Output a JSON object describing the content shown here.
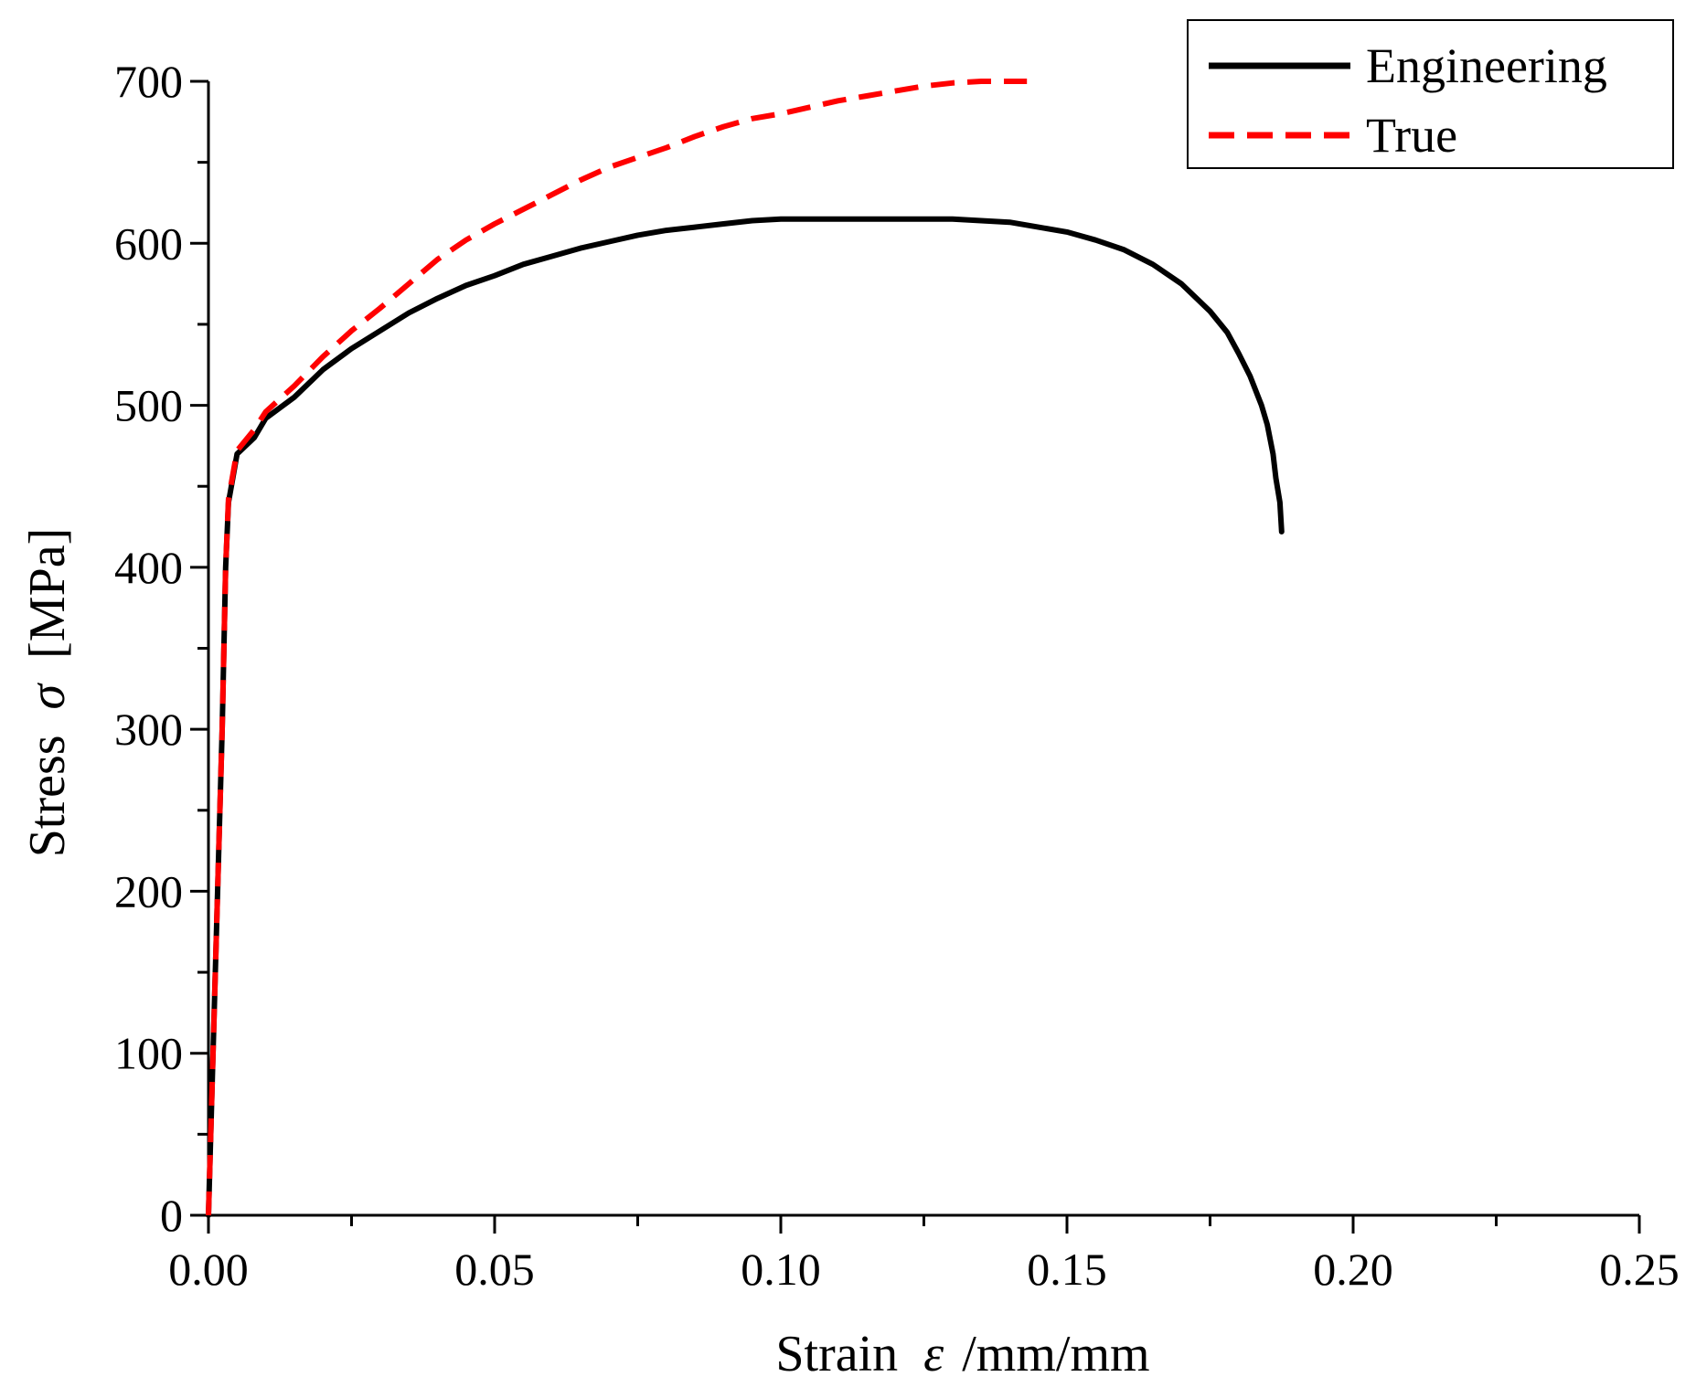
{
  "chart_data": {
    "type": "line",
    "title": "",
    "xlabel": {
      "prefix": "Strain",
      "symbol": "ε",
      "suffix": "/mm/mm"
    },
    "ylabel": {
      "prefix": "Stress",
      "symbol": "σ",
      "suffix": "[MPa]"
    },
    "xlim": [
      0,
      0.25
    ],
    "ylim": [
      0,
      700
    ],
    "x_ticks": [
      {
        "value": 0.0,
        "label": "0.00"
      },
      {
        "value": 0.05,
        "label": "0.05"
      },
      {
        "value": 0.1,
        "label": "0.10"
      },
      {
        "value": 0.15,
        "label": "0.15"
      },
      {
        "value": 0.2,
        "label": "0.20"
      },
      {
        "value": 0.25,
        "label": "0.25"
      }
    ],
    "x_minor_ticks": [
      0.025,
      0.075,
      0.125,
      0.175,
      0.225
    ],
    "y_ticks": [
      {
        "value": 0,
        "label": "0"
      },
      {
        "value": 100,
        "label": "100"
      },
      {
        "value": 200,
        "label": "200"
      },
      {
        "value": 300,
        "label": "300"
      },
      {
        "value": 400,
        "label": "400"
      },
      {
        "value": 500,
        "label": "500"
      },
      {
        "value": 600,
        "label": "600"
      },
      {
        "value": 700,
        "label": "700"
      }
    ],
    "y_minor_ticks": [
      50,
      150,
      250,
      350,
      450,
      550,
      650
    ],
    "grid": false,
    "legend_position": "top-right",
    "series": [
      {
        "name": "Engineering",
        "color": "#000000",
        "style": "solid",
        "points": [
          [
            0.0,
            0
          ],
          [
            0.0008,
            100
          ],
          [
            0.0016,
            200
          ],
          [
            0.0024,
            300
          ],
          [
            0.003,
            400
          ],
          [
            0.0035,
            440
          ],
          [
            0.005,
            470
          ],
          [
            0.008,
            480
          ],
          [
            0.01,
            492
          ],
          [
            0.015,
            505
          ],
          [
            0.02,
            522
          ],
          [
            0.025,
            535
          ],
          [
            0.03,
            546
          ],
          [
            0.035,
            557
          ],
          [
            0.04,
            566
          ],
          [
            0.045,
            574
          ],
          [
            0.05,
            580
          ],
          [
            0.055,
            587
          ],
          [
            0.06,
            592
          ],
          [
            0.065,
            597
          ],
          [
            0.07,
            601
          ],
          [
            0.075,
            605
          ],
          [
            0.08,
            608
          ],
          [
            0.085,
            610
          ],
          [
            0.09,
            612
          ],
          [
            0.095,
            614
          ],
          [
            0.1,
            615
          ],
          [
            0.105,
            615
          ],
          [
            0.11,
            615
          ],
          [
            0.115,
            615
          ],
          [
            0.12,
            615
          ],
          [
            0.125,
            615
          ],
          [
            0.13,
            615
          ],
          [
            0.135,
            614
          ],
          [
            0.14,
            613
          ],
          [
            0.145,
            610
          ],
          [
            0.15,
            607
          ],
          [
            0.155,
            602
          ],
          [
            0.16,
            596
          ],
          [
            0.165,
            587
          ],
          [
            0.17,
            575
          ],
          [
            0.175,
            558
          ],
          [
            0.178,
            545
          ],
          [
            0.18,
            532
          ],
          [
            0.182,
            518
          ],
          [
            0.184,
            500
          ],
          [
            0.185,
            488
          ],
          [
            0.186,
            470
          ],
          [
            0.1865,
            455
          ],
          [
            0.1872,
            440
          ],
          [
            0.1875,
            422
          ]
        ]
      },
      {
        "name": "True",
        "color": "#ff0000",
        "style": "dashed",
        "points": [
          [
            0.0,
            0
          ],
          [
            0.0008,
            100
          ],
          [
            0.0016,
            200
          ],
          [
            0.0024,
            300
          ],
          [
            0.003,
            400
          ],
          [
            0.0035,
            442
          ],
          [
            0.005,
            472
          ],
          [
            0.008,
            485
          ],
          [
            0.01,
            496
          ],
          [
            0.015,
            512
          ],
          [
            0.02,
            530
          ],
          [
            0.025,
            546
          ],
          [
            0.03,
            560
          ],
          [
            0.035,
            575
          ],
          [
            0.04,
            590
          ],
          [
            0.045,
            602
          ],
          [
            0.05,
            612
          ],
          [
            0.055,
            621
          ],
          [
            0.06,
            630
          ],
          [
            0.065,
            639
          ],
          [
            0.07,
            647
          ],
          [
            0.075,
            653
          ],
          [
            0.08,
            659
          ],
          [
            0.085,
            666
          ],
          [
            0.09,
            672
          ],
          [
            0.095,
            677
          ],
          [
            0.1,
            680
          ],
          [
            0.105,
            684
          ],
          [
            0.11,
            688
          ],
          [
            0.115,
            691
          ],
          [
            0.12,
            694
          ],
          [
            0.125,
            697
          ],
          [
            0.13,
            699
          ],
          [
            0.135,
            700
          ],
          [
            0.14,
            700
          ],
          [
            0.143,
            700
          ]
        ]
      }
    ]
  }
}
